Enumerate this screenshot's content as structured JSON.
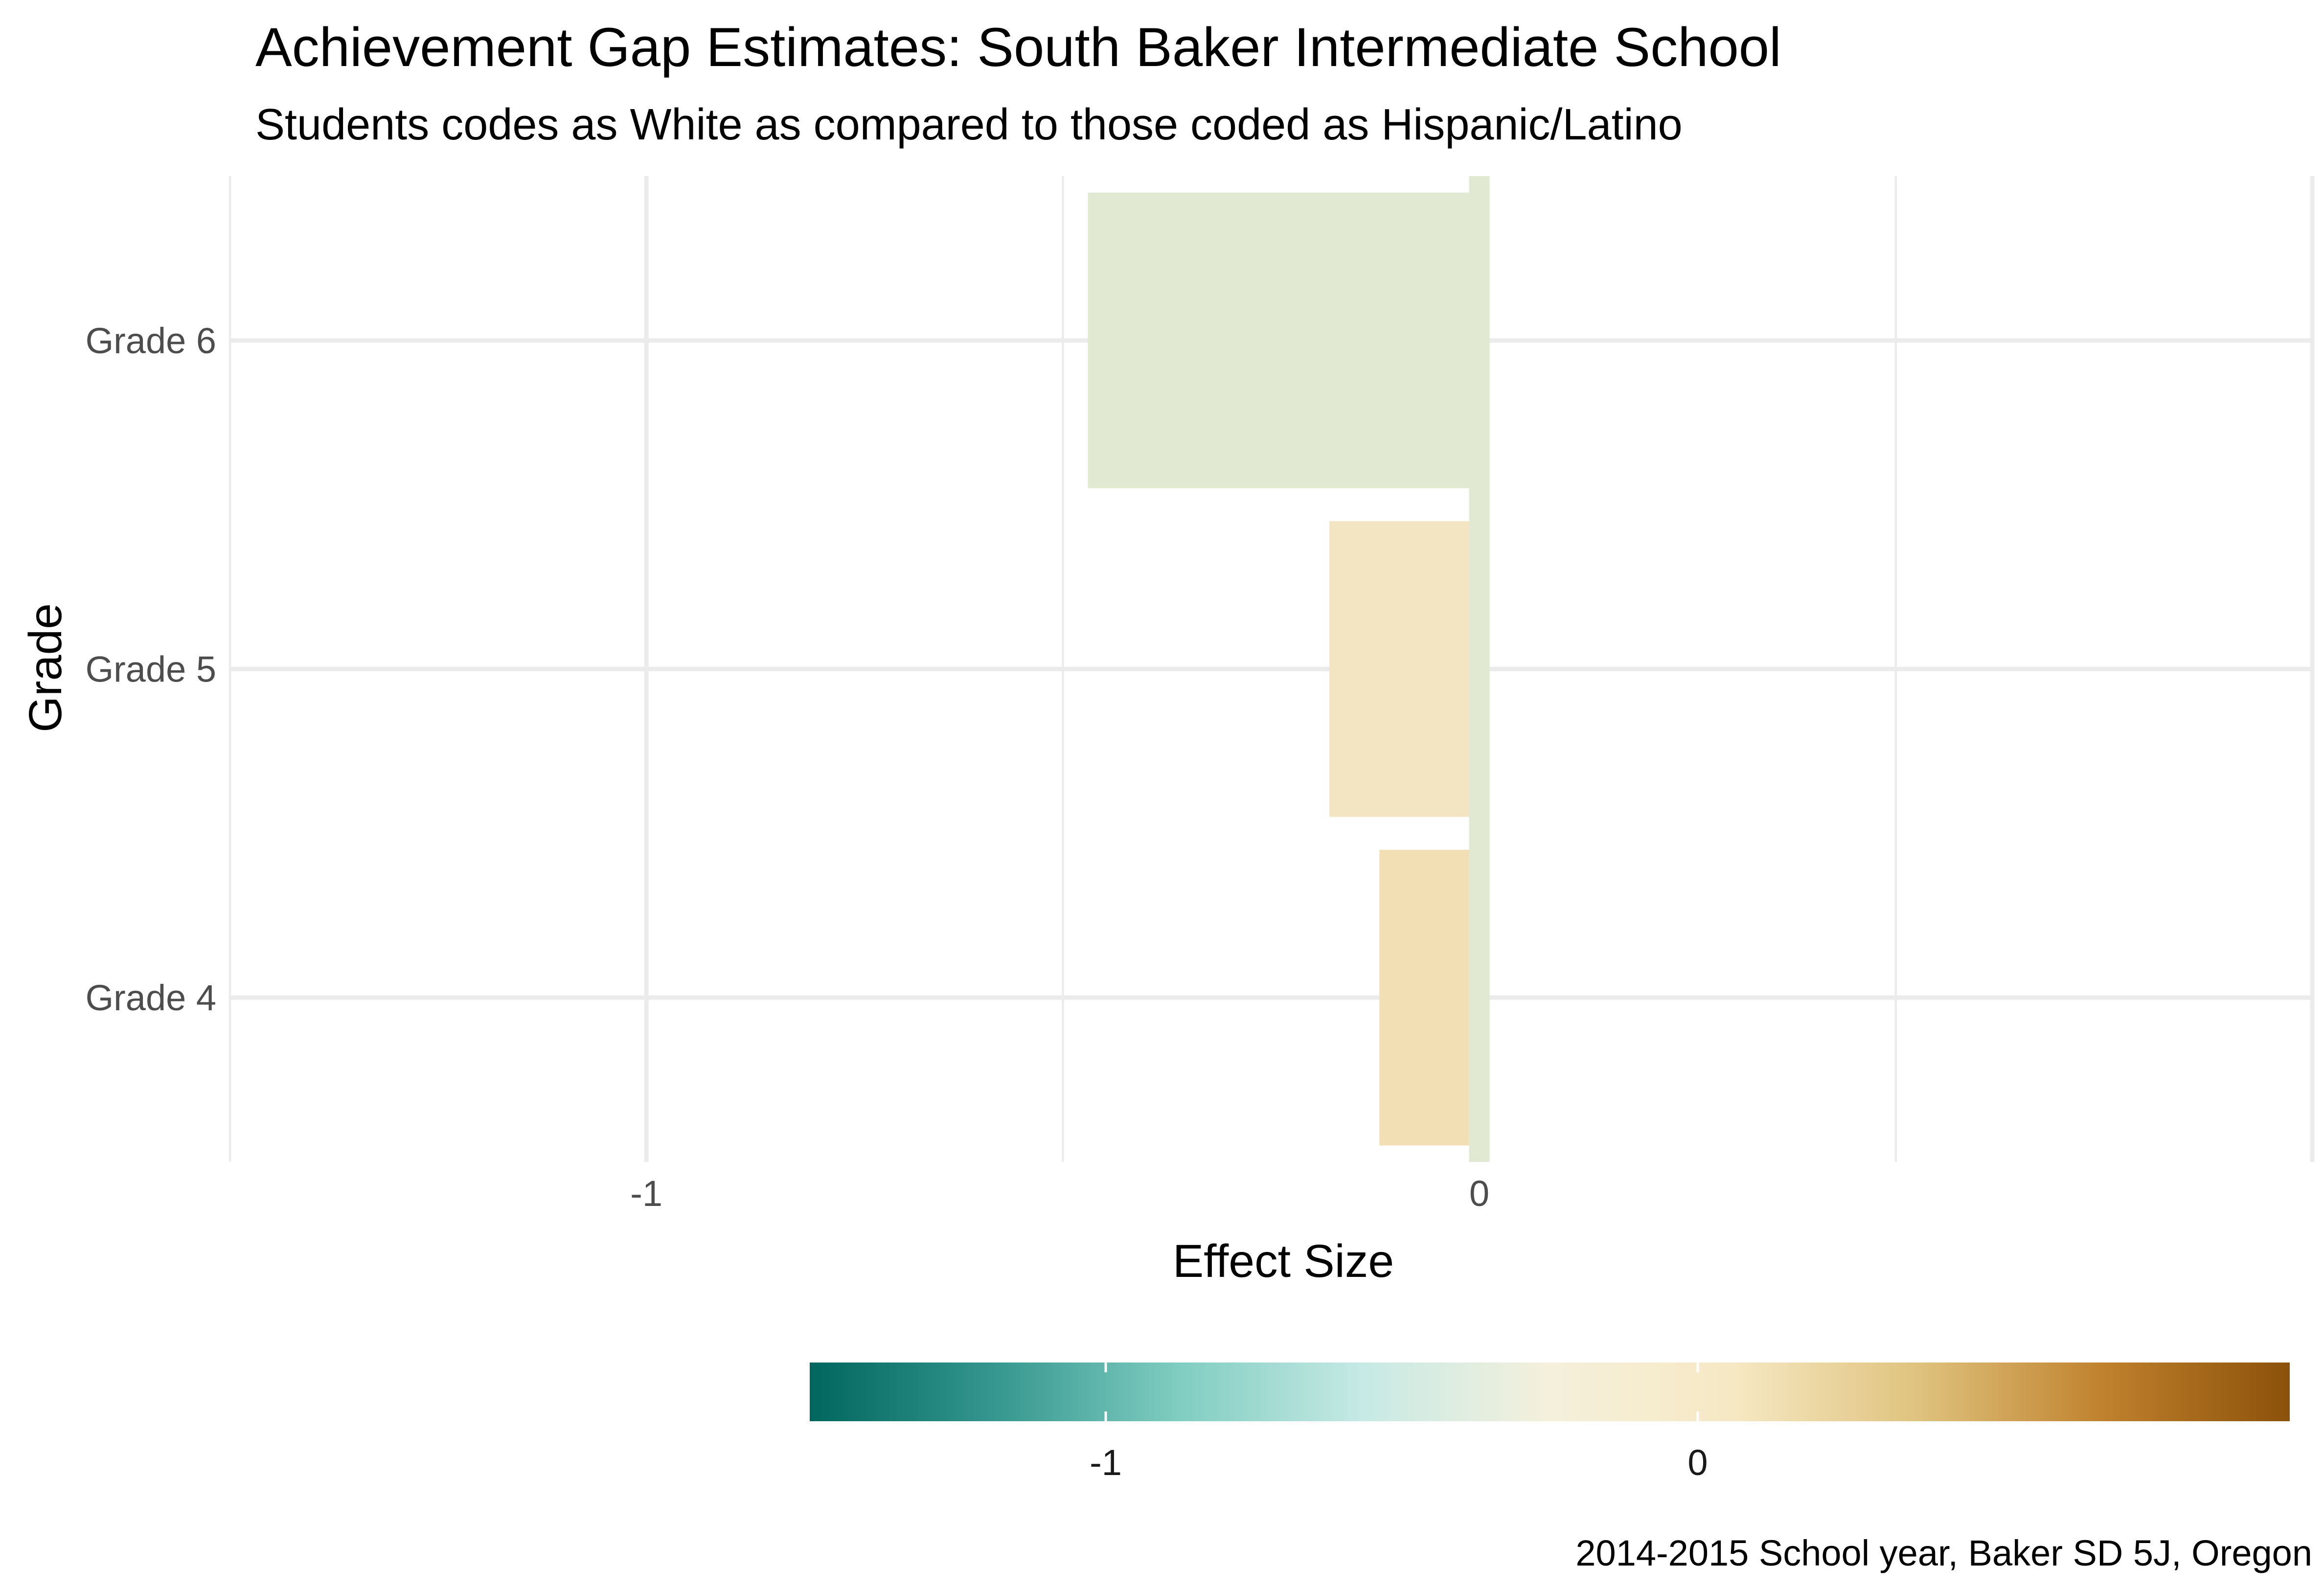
{
  "chart_data": {
    "type": "bar",
    "orientation": "horizontal",
    "title": "Achievement Gap Estimates: South Baker Intermediate School",
    "subtitle": "Students codes as White as compared to those coded as Hispanic/Latino",
    "xlabel": "Effect Size",
    "ylabel": "Grade",
    "caption": "2014-2015 School year, Baker SD 5J, Oregon",
    "categories": [
      "Grade 4",
      "Grade 5",
      "Grade 6"
    ],
    "values": [
      -0.12,
      -0.18,
      -0.47
    ],
    "xlim": [
      -1.5,
      1.0
    ],
    "x_ticks": [
      -1,
      0
    ],
    "x_tick_labels": [
      "-1",
      "0"
    ],
    "reference_line": {
      "value": 0,
      "color": "#e2e9d3"
    },
    "grid": true,
    "legend": {
      "type": "colorbar",
      "position": "bottom",
      "range": [
        -1.5,
        1.0
      ],
      "ticks": [
        -1,
        0
      ],
      "tick_labels": [
        "-1",
        "0"
      ],
      "colors": [
        "#01665e",
        "#35978f",
        "#80cdc1",
        "#c7eae5",
        "#f5f0dc",
        "#f6e8c3",
        "#dfc27d",
        "#bf812d",
        "#8c510a"
      ]
    },
    "bar_colors": [
      "#f2dfb4",
      "#f3e5c2",
      "#e2e9d3"
    ]
  }
}
